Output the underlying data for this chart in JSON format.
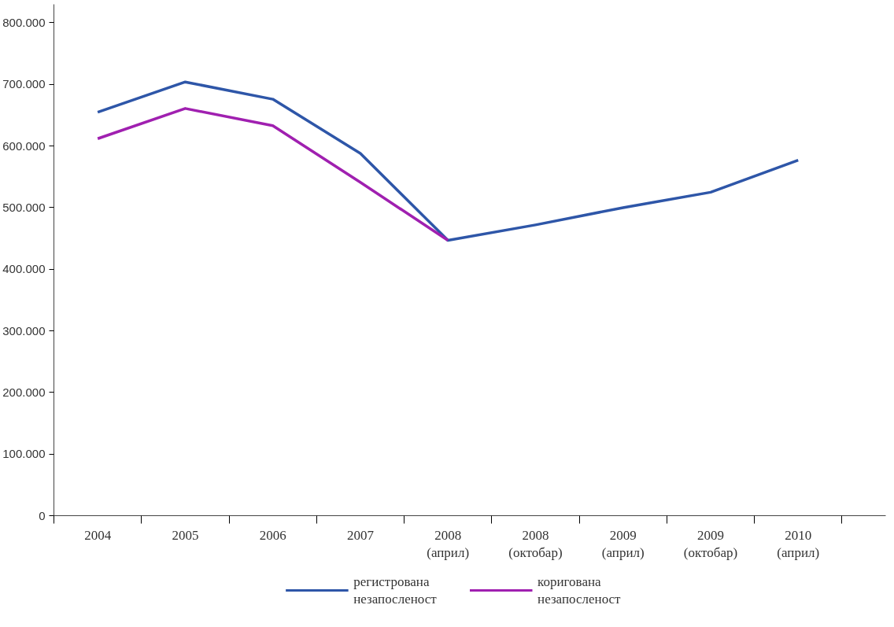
{
  "chart_data": {
    "type": "line",
    "categories": [
      "2004",
      "2005",
      "2006",
      "2007",
      "2008\n(април)",
      "2008\n(октобар)",
      "2009\n(април)",
      "2009\n(октобар)",
      "2010\n(април)"
    ],
    "series": [
      {
        "name": "регистрована\nнезапосленост",
        "color": "#2e56a8",
        "values": [
          655000,
          704000,
          676000,
          588000,
          447000,
          472000,
          500000,
          525000,
          577000
        ]
      },
      {
        "name": "коригована\nнезапосленост",
        "color": "#a020b0",
        "values": [
          612000,
          661000,
          633000,
          541000,
          447000,
          null,
          null,
          null,
          null
        ]
      }
    ],
    "ylim": [
      0,
      830000
    ],
    "yticks": [
      {
        "value": 0,
        "label": "0"
      },
      {
        "value": 100000,
        "label": "100.000"
      },
      {
        "value": 200000,
        "label": "200.000"
      },
      {
        "value": 300000,
        "label": "300.000"
      },
      {
        "value": 400000,
        "label": "400.000"
      },
      {
        "value": 500000,
        "label": "500.000"
      },
      {
        "value": 600000,
        "label": "600.000"
      },
      {
        "value": 700000,
        "label": "700.000"
      },
      {
        "value": 800000,
        "label": "800.000"
      }
    ],
    "grid": false,
    "legend": "bottom",
    "line_style": "solid",
    "marker": "none"
  }
}
